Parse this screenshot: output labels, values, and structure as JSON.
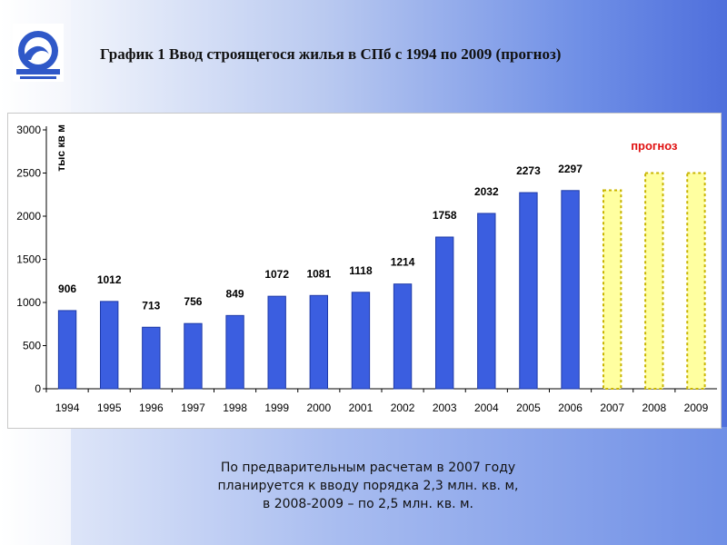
{
  "slide": {
    "title": "График 1 Ввод строящегося жилья в СПб с 1994 по 2009 (прогноз)",
    "caption_lines": [
      "По предварительным расчетам в 2007 году",
      "планируется к вводу порядка 2,3 млн. кв. м,",
      "в 2008-2009 – по 2,5 млн. кв. м."
    ],
    "logo_icon": "wave-logo-icon"
  },
  "chart_data": {
    "type": "bar",
    "title": "",
    "xlabel": "",
    "ylabel": "тыс кв м",
    "ylim": [
      0,
      3000
    ],
    "yticks": [
      0,
      500,
      1000,
      1500,
      2000,
      2500,
      3000
    ],
    "grid": false,
    "annotation": "прогноз",
    "categories": [
      "1994",
      "1995",
      "1996",
      "1997",
      "1998",
      "1999",
      "2000",
      "2001",
      "2002",
      "2003",
      "2004",
      "2005",
      "2006",
      "2007",
      "2008",
      "2009"
    ],
    "values": [
      906,
      1012,
      713,
      756,
      849,
      1072,
      1081,
      1118,
      1214,
      1758,
      2032,
      2273,
      2297,
      2300,
      2500,
      2500
    ],
    "data_labels": [
      "906",
      "1012",
      "713",
      "756",
      "849",
      "1072",
      "1081",
      "1118",
      "1214",
      "1758",
      "2032",
      "2273",
      "2297",
      "",
      "",
      ""
    ],
    "forecast": [
      false,
      false,
      false,
      false,
      false,
      false,
      false,
      false,
      false,
      false,
      false,
      false,
      false,
      true,
      true,
      true
    ],
    "colors": {
      "actual": "#3b5ee0",
      "actual_edge": "#1e3aa8",
      "forecast": "#ffffa0",
      "forecast_edge": "#c8b400",
      "annotation": "#e01010"
    }
  }
}
